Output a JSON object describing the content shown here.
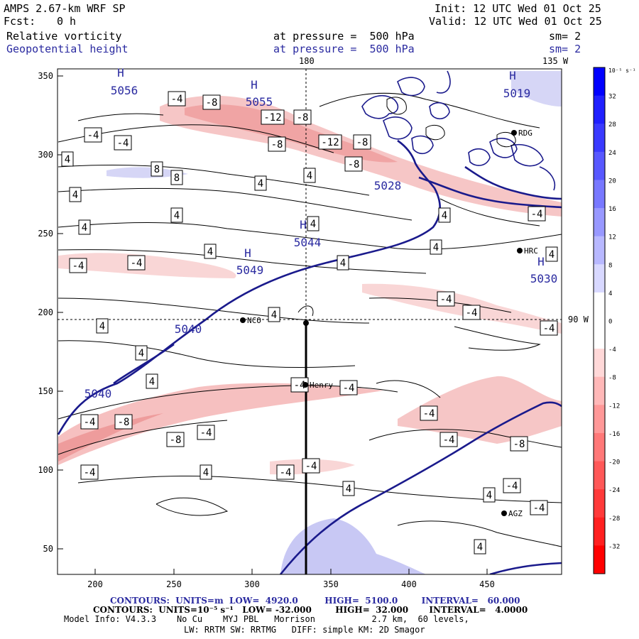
{
  "header": {
    "model": "AMPS 2.67-km WRF SP",
    "init": "Init: 12 UTC Wed 01 Oct 25",
    "fcst_label": "Fcst:",
    "fcst_value": "0 h",
    "valid": "Valid: 12 UTC Wed 01 Oct 25",
    "field1": "Relative vorticity",
    "field1_level": "at pressure =  500 hPa",
    "field1_sm": "sm= 2",
    "field2": "Geopotential height",
    "field2_level": "at pressure =  500 hPa",
    "field2_sm": "sm= 2"
  },
  "map": {
    "x_ticks": [
      "200",
      "250",
      "300",
      "350",
      "400",
      "450"
    ],
    "y_ticks": [
      "350",
      "300",
      "250",
      "200",
      "150",
      "100",
      "50"
    ],
    "lon_label_180": "180",
    "lon_label_135w": "135 W",
    "lat_label_90w": "90 W",
    "stations": [
      "RDG",
      "HRC",
      "NCO",
      "Henry",
      "AGZ"
    ],
    "height_labels": [
      "5056",
      "5055",
      "5028",
      "5044",
      "5049",
      "5030",
      "5040",
      "5040",
      "5019"
    ],
    "high_marker": "H",
    "vorticity_labels": [
      "-4",
      "-8",
      "-12",
      "4",
      "8"
    ]
  },
  "colorbar": {
    "unit": "10⁻⁵ s⁻¹",
    "labels": [
      "32",
      "28",
      "24",
      "20",
      "16",
      "12",
      "8",
      "4",
      "0",
      "-4",
      "-8",
      "-12",
      "-16",
      "-20",
      "-24",
      "-28",
      "-32"
    ],
    "colors": [
      "#0000ff",
      "#2020ff",
      "#3a3aff",
      "#5858ff",
      "#7878ff",
      "#9898ff",
      "#b8b8ff",
      "#d8d8ff",
      "#ffffff",
      "#ffffff",
      "#ffd8d8",
      "#ffb8b8",
      "#ff9898",
      "#ff7878",
      "#ff5858",
      "#ff3a3a",
      "#ff2020",
      "#ff0000"
    ]
  },
  "footer": {
    "contours1": "CONTOURS:  UNITS=m  LOW=  4920.0         HIGH=  5100.0        INTERVAL=   60.000",
    "contours2": "CONTOURS:  UNITS=10⁻⁵ s⁻¹   LOW= -32.000        HIGH=  32.000       INTERVAL=   4.0000",
    "model_info": "Model Info: V4.3.3    No Cu    MYJ PBL   Morrison           2.7 km,  60 levels,",
    "model_info2": "LW: RRTM SW: RRTMG   DIFF: simple KM: 2D Smagor"
  },
  "colors": {
    "height_contour": "#1a1a8c",
    "negative_fill": "#f4b4b4",
    "positive_fill": "#c8c8f4"
  }
}
